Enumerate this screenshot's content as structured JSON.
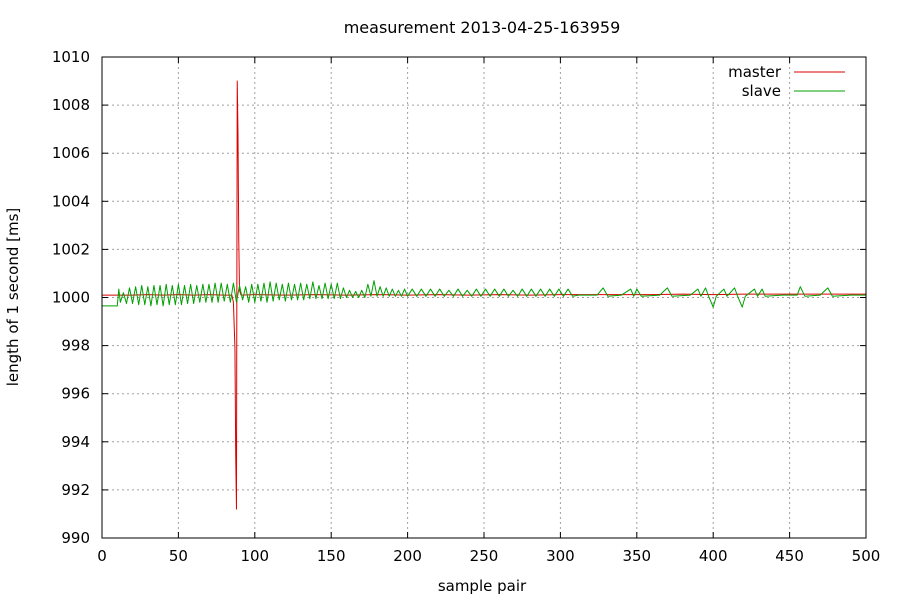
{
  "chart_data": {
    "type": "line",
    "title": "measurement 2013-04-25-163959",
    "xlabel": "sample pair",
    "ylabel": "length of 1 second [ms]",
    "xlim": [
      0,
      500
    ],
    "ylim": [
      990,
      1010
    ],
    "xticks": [
      0,
      50,
      100,
      150,
      200,
      250,
      300,
      350,
      400,
      450,
      500
    ],
    "yticks": [
      990,
      992,
      994,
      996,
      998,
      1000,
      1002,
      1004,
      1006,
      1008,
      1010
    ],
    "grid": true,
    "legend_position": "top-right",
    "series": [
      {
        "name": "master",
        "color": "#dd0000",
        "points": [
          [
            0,
            1000.1
          ],
          [
            10,
            1000.1
          ],
          [
            20,
            1000.1
          ],
          [
            30,
            1000.12
          ],
          [
            40,
            1000.1
          ],
          [
            50,
            1000.12
          ],
          [
            60,
            1000.1
          ],
          [
            70,
            1000.12
          ],
          [
            80,
            1000.1
          ],
          [
            85,
            1000.1
          ],
          [
            86,
            999.8
          ],
          [
            87,
            997.9
          ],
          [
            87.5,
            993.5
          ],
          [
            88,
            991.2
          ],
          [
            88.5,
            1009.0
          ],
          [
            89,
            1006.8
          ],
          [
            89.5,
            1002.4
          ],
          [
            90,
            1000.3
          ],
          [
            91,
            1000.1
          ],
          [
            100,
            1000.12
          ],
          [
            120,
            1000.1
          ],
          [
            140,
            1000.12
          ],
          [
            160,
            1000.1
          ],
          [
            180,
            1000.12
          ],
          [
            200,
            1000.1
          ],
          [
            220,
            1000.12
          ],
          [
            240,
            1000.1
          ],
          [
            260,
            1000.12
          ],
          [
            280,
            1000.1
          ],
          [
            300,
            1000.12
          ],
          [
            320,
            1000.12
          ],
          [
            340,
            1000.12
          ],
          [
            360,
            1000.12
          ],
          [
            380,
            1000.14
          ],
          [
            400,
            1000.12
          ],
          [
            420,
            1000.14
          ],
          [
            440,
            1000.14
          ],
          [
            460,
            1000.14
          ],
          [
            480,
            1000.14
          ],
          [
            500,
            1000.14
          ]
        ]
      },
      {
        "name": "slave",
        "color": "#00a000",
        "points": [
          [
            0,
            999.65
          ],
          [
            10,
            999.65
          ],
          [
            11,
            1000.35
          ],
          [
            12,
            999.8
          ],
          [
            14,
            1000.2
          ],
          [
            16,
            999.75
          ],
          [
            18,
            1000.4
          ],
          [
            20,
            999.75
          ],
          [
            22,
            1000.45
          ],
          [
            24,
            999.7
          ],
          [
            26,
            1000.5
          ],
          [
            28,
            999.7
          ],
          [
            30,
            1000.45
          ],
          [
            32,
            999.65
          ],
          [
            34,
            1000.5
          ],
          [
            36,
            999.7
          ],
          [
            38,
            1000.5
          ],
          [
            40,
            999.65
          ],
          [
            42,
            1000.55
          ],
          [
            44,
            999.7
          ],
          [
            46,
            1000.5
          ],
          [
            48,
            999.7
          ],
          [
            50,
            1000.55
          ],
          [
            52,
            999.7
          ],
          [
            54,
            1000.5
          ],
          [
            56,
            999.75
          ],
          [
            58,
            1000.55
          ],
          [
            60,
            999.75
          ],
          [
            62,
            1000.5
          ],
          [
            64,
            999.8
          ],
          [
            66,
            1000.55
          ],
          [
            68,
            999.8
          ],
          [
            70,
            1000.55
          ],
          [
            72,
            999.8
          ],
          [
            74,
            1000.6
          ],
          [
            76,
            999.8
          ],
          [
            78,
            1000.6
          ],
          [
            80,
            999.85
          ],
          [
            82,
            1000.55
          ],
          [
            84,
            999.8
          ],
          [
            86,
            1000.6
          ],
          [
            88,
            999.8
          ],
          [
            90,
            1000.5
          ],
          [
            92,
            999.9
          ],
          [
            94,
            1000.45
          ],
          [
            96,
            999.8
          ],
          [
            98,
            1000.55
          ],
          [
            100,
            999.8
          ],
          [
            102,
            1000.55
          ],
          [
            104,
            999.85
          ],
          [
            106,
            1000.6
          ],
          [
            108,
            999.8
          ],
          [
            110,
            1000.65
          ],
          [
            112,
            999.85
          ],
          [
            114,
            1000.6
          ],
          [
            116,
            999.9
          ],
          [
            118,
            1000.55
          ],
          [
            120,
            999.85
          ],
          [
            122,
            1000.6
          ],
          [
            124,
            999.9
          ],
          [
            126,
            1000.55
          ],
          [
            128,
            999.9
          ],
          [
            130,
            1000.6
          ],
          [
            132,
            999.9
          ],
          [
            134,
            1000.55
          ],
          [
            136,
            999.95
          ],
          [
            138,
            1000.65
          ],
          [
            140,
            999.95
          ],
          [
            142,
            1000.5
          ],
          [
            144,
            999.95
          ],
          [
            146,
            1000.6
          ],
          [
            148,
            999.95
          ],
          [
            150,
            1000.55
          ],
          [
            152,
            999.95
          ],
          [
            154,
            1000.6
          ],
          [
            156,
            999.95
          ],
          [
            158,
            1000.4
          ],
          [
            160,
            1000.0
          ],
          [
            162,
            1000.3
          ],
          [
            164,
            1000.0
          ],
          [
            166,
            1000.25
          ],
          [
            168,
            1000.0
          ],
          [
            170,
            1000.3
          ],
          [
            172,
            1000.0
          ],
          [
            174,
            1000.55
          ],
          [
            176,
            1000.05
          ],
          [
            178,
            1000.7
          ],
          [
            180,
            1000.05
          ],
          [
            182,
            1000.45
          ],
          [
            184,
            1000.05
          ],
          [
            186,
            1000.4
          ],
          [
            188,
            1000.05
          ],
          [
            190,
            1000.35
          ],
          [
            192,
            1000.05
          ],
          [
            194,
            1000.3
          ],
          [
            196,
            1000.05
          ],
          [
            198,
            1000.35
          ],
          [
            200,
            1000.05
          ],
          [
            203,
            1000.35
          ],
          [
            206,
            1000.05
          ],
          [
            209,
            1000.35
          ],
          [
            212,
            1000.05
          ],
          [
            215,
            1000.35
          ],
          [
            218,
            1000.05
          ],
          [
            221,
            1000.35
          ],
          [
            224,
            1000.05
          ],
          [
            227,
            1000.3
          ],
          [
            230,
            1000.05
          ],
          [
            233,
            1000.35
          ],
          [
            236,
            1000.05
          ],
          [
            239,
            1000.3
          ],
          [
            242,
            1000.05
          ],
          [
            245,
            1000.35
          ],
          [
            248,
            1000.05
          ],
          [
            251,
            1000.35
          ],
          [
            254,
            1000.05
          ],
          [
            257,
            1000.35
          ],
          [
            260,
            1000.05
          ],
          [
            263,
            1000.35
          ],
          [
            266,
            1000.05
          ],
          [
            269,
            1000.3
          ],
          [
            272,
            1000.05
          ],
          [
            275,
            1000.35
          ],
          [
            278,
            1000.05
          ],
          [
            281,
            1000.35
          ],
          [
            284,
            1000.05
          ],
          [
            287,
            1000.35
          ],
          [
            290,
            1000.05
          ],
          [
            293,
            1000.35
          ],
          [
            296,
            1000.05
          ],
          [
            299,
            1000.35
          ],
          [
            302,
            1000.05
          ],
          [
            305,
            1000.35
          ],
          [
            308,
            1000.05
          ],
          [
            312,
            1000.1
          ],
          [
            318,
            1000.1
          ],
          [
            324,
            1000.1
          ],
          [
            328,
            1000.4
          ],
          [
            331,
            1000.05
          ],
          [
            340,
            1000.1
          ],
          [
            346,
            1000.35
          ],
          [
            348,
            1000.05
          ],
          [
            350,
            1000.35
          ],
          [
            353,
            1000.05
          ],
          [
            365,
            1000.1
          ],
          [
            370,
            1000.4
          ],
          [
            373,
            1000.05
          ],
          [
            385,
            1000.1
          ],
          [
            390,
            1000.35
          ],
          [
            392,
            1000.05
          ],
          [
            395,
            1000.4
          ],
          [
            397,
            1000.05
          ],
          [
            400,
            999.6
          ],
          [
            402,
            1000.05
          ],
          [
            407,
            1000.35
          ],
          [
            409,
            1000.05
          ],
          [
            414,
            1000.4
          ],
          [
            416,
            1000.05
          ],
          [
            419,
            999.6
          ],
          [
            421,
            1000.05
          ],
          [
            427,
            1000.35
          ],
          [
            429,
            1000.05
          ],
          [
            432,
            1000.35
          ],
          [
            434,
            1000.05
          ],
          [
            445,
            1000.1
          ],
          [
            455,
            1000.1
          ],
          [
            457,
            1000.45
          ],
          [
            460,
            1000.05
          ],
          [
            470,
            1000.1
          ],
          [
            475,
            1000.4
          ],
          [
            478,
            1000.05
          ],
          [
            490,
            1000.1
          ],
          [
            500,
            1000.1
          ]
        ]
      }
    ]
  }
}
